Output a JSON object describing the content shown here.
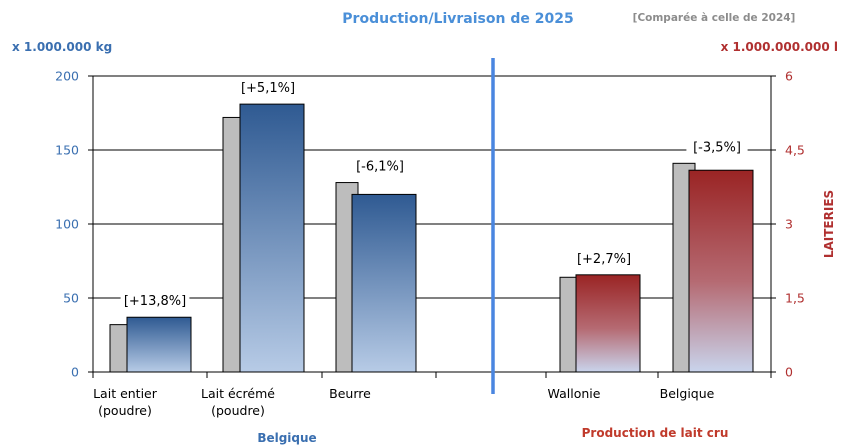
{
  "chart_data": {
    "type": "bar",
    "title": "Production/Livraison de 2025",
    "comparison_note": "[Comparée à celle de 2024]",
    "left_axis": {
      "unit_label": "x 1.000.000 kg",
      "ylim": [
        0,
        200
      ],
      "ticks": [
        "0",
        "50",
        "100",
        "150",
        "200"
      ],
      "tick_values": [
        0,
        50,
        100,
        150,
        200
      ],
      "color": "#3a6fb0"
    },
    "right_axis": {
      "unit_label": "x 1.000.000.000 l",
      "side_label": "LAITERIES",
      "ylim": [
        0,
        6
      ],
      "ticks": [
        "0",
        "1,5",
        "3",
        "4,5",
        "6"
      ],
      "tick_values": [
        0,
        1.5,
        3,
        4.5,
        6
      ],
      "color": "#b03030"
    },
    "groups": [
      {
        "name": "Belgique",
        "axis": "left",
        "categories": [
          {
            "line1": "Lait entier",
            "line2": "(poudre)",
            "prev": 32,
            "curr": 37,
            "label": "[+13,8%]"
          },
          {
            "line1": "Lait écrémé",
            "line2": "(poudre)",
            "prev": 172,
            "curr": 181,
            "label": "[+5,1%]"
          },
          {
            "line1": "Beurre",
            "line2": "",
            "prev": 128,
            "curr": 120,
            "label": "[-6,1%]"
          }
        ]
      },
      {
        "name": "Production de lait cru",
        "axis": "right",
        "categories": [
          {
            "line1": "Wallonie",
            "line2": "",
            "prev": 1.92,
            "curr": 1.97,
            "label": "[+2,7%]"
          },
          {
            "line1": "Belgique",
            "line2": "",
            "prev": 4.23,
            "curr": 4.09,
            "label": "[-3,5%]"
          }
        ]
      }
    ],
    "grid": true,
    "legend": "none",
    "colors": {
      "previous_year_bar": "#bdbdbd",
      "left_current_top": "#2f5a92",
      "left_current_bottom": "#b7cbe6",
      "right_current_top": "#9a2424",
      "right_current_bottom": "#c9d4ec",
      "divider": "#4a86e0"
    }
  }
}
